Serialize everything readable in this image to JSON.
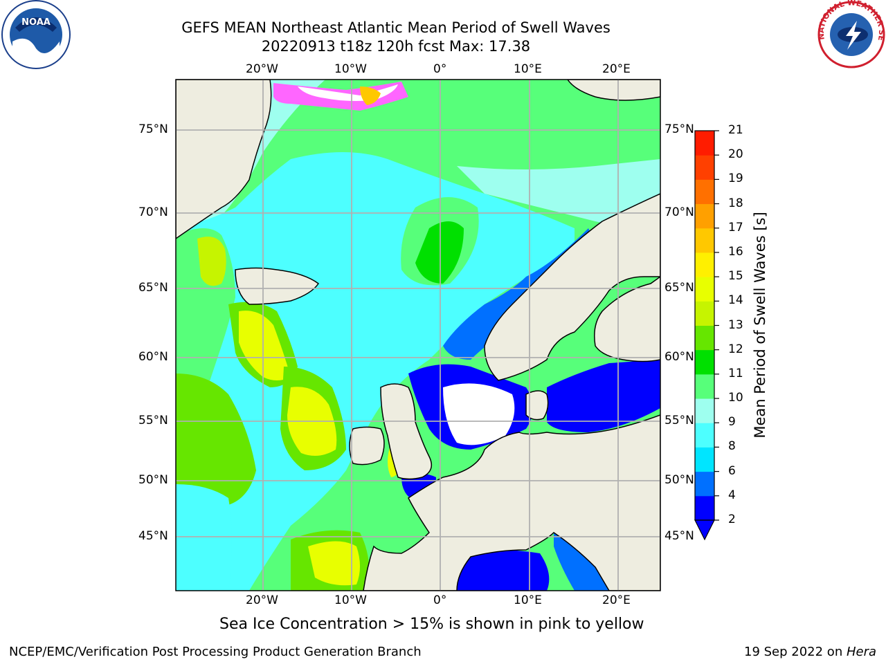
{
  "title": {
    "line1": "GEFS MEAN Northeast Atlantic Mean Period of Swell Waves",
    "line2": "20220913 t18z 120h fcst   Max: 17.38"
  },
  "logos": {
    "left": {
      "name": "noaa-logo",
      "text": "NOAA"
    },
    "right": {
      "name": "nws-logo",
      "text": "NATIONAL WEATHER SERVICE"
    }
  },
  "map": {
    "lon_labels": [
      "20°W",
      "10°W",
      "0°",
      "10°E",
      "20°E"
    ],
    "lat_labels": [
      "75°N",
      "70°N",
      "65°N",
      "60°N",
      "55°N",
      "50°N",
      "45°N"
    ],
    "sea_ice_note": "Sea Ice Concentration > 15% is shown in pink to yellow"
  },
  "colorbar": {
    "label": "Mean Period of Swell Waves [s]",
    "ticks": [
      "2",
      "4",
      "6",
      "8",
      "9",
      "10",
      "11",
      "12",
      "13",
      "14",
      "15",
      "16",
      "17",
      "18",
      "19",
      "20",
      "21"
    ],
    "colors": [
      "#0000ff",
      "#0070ff",
      "#00e5ff",
      "#4dffff",
      "#9effef",
      "#57ff7a",
      "#00e000",
      "#66e600",
      "#c6f400",
      "#e8ff00",
      "#fff000",
      "#ffc800",
      "#ffa000",
      "#ff7000",
      "#ff4000",
      "#ff1c00"
    ]
  },
  "footer": {
    "left": "NCEP/EMC/Verification Post Processing Product Generation Branch",
    "right_date": "19 Sep 2022 on ",
    "right_machine": "Hera"
  }
}
